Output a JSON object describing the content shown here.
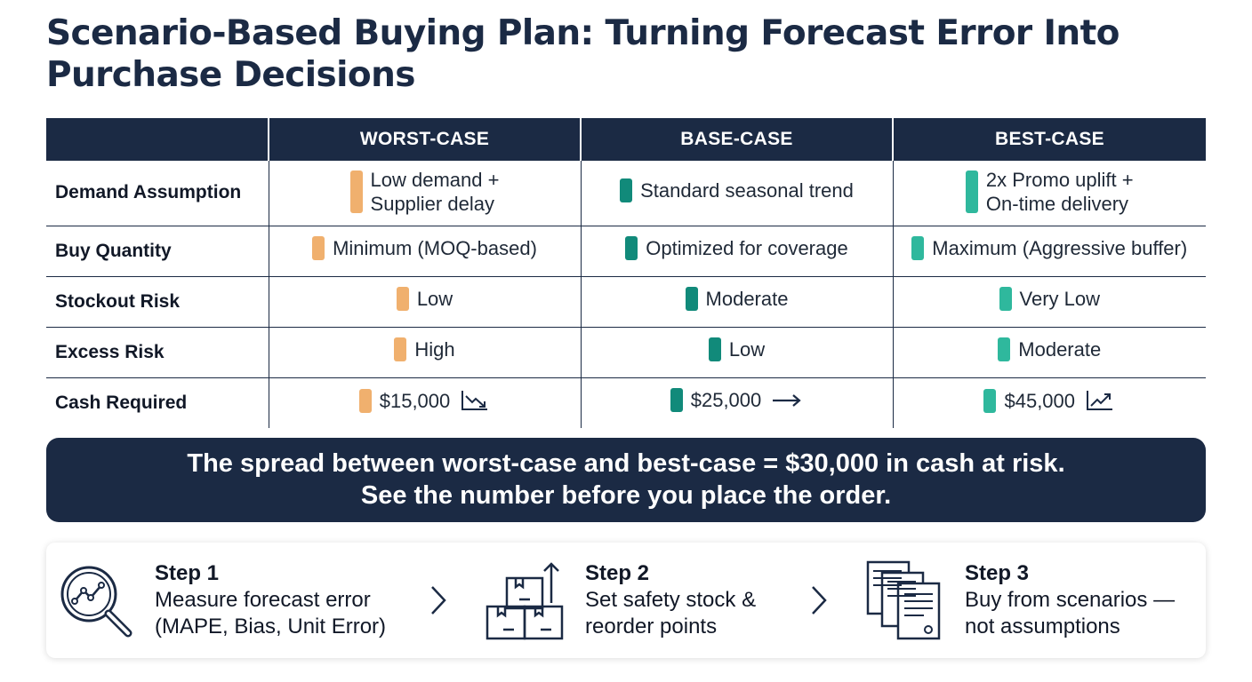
{
  "title": "Scenario-Based Buying Plan: Turning Forecast Error Into Purchase Decisions",
  "colors": {
    "navy": "#1b2a44",
    "worst": "#f0b06e",
    "base": "#118a7a",
    "best": "#2fb89d"
  },
  "table": {
    "headers": [
      "",
      "WORST-CASE",
      "BASE-CASE",
      "BEST-CASE"
    ],
    "rows": [
      {
        "label": "Demand Assumption",
        "cells": [
          {
            "line1": "Low demand +",
            "line2": "Supplier delay"
          },
          {
            "line1": "Standard seasonal trend"
          },
          {
            "line1": "2x Promo uplift +",
            "line2": "On-time delivery"
          }
        ]
      },
      {
        "label": "Buy Quantity",
        "cells": [
          {
            "line1": "Minimum (MOQ-based)"
          },
          {
            "line1": "Optimized for coverage"
          },
          {
            "line1": "Maximum (Aggressive buffer)"
          }
        ]
      },
      {
        "label": "Stockout Risk",
        "cells": [
          {
            "line1": "Low"
          },
          {
            "line1": "Moderate"
          },
          {
            "line1": "Very Low"
          }
        ]
      },
      {
        "label": "Excess Risk",
        "cells": [
          {
            "line1": "High"
          },
          {
            "line1": "Low"
          },
          {
            "line1": "Moderate"
          }
        ]
      },
      {
        "label": "Cash Required",
        "cells": [
          {
            "line1": "$15,000",
            "trend": "trend-down-icon"
          },
          {
            "line1": "$25,000",
            "trend": "arrow-right-icon"
          },
          {
            "line1": "$45,000",
            "trend": "trend-up-icon"
          }
        ]
      }
    ]
  },
  "banner": {
    "line1": "The spread between worst-case and best-case = $30,000 in cash at risk.",
    "line2": "See the number before you place the order."
  },
  "steps": [
    {
      "title": "Step 1",
      "line1": "Measure forecast error",
      "line2": "(MAPE, Bias, Unit Error)",
      "icon": "magnifier-chart-icon"
    },
    {
      "title": "Step 2",
      "line1": "Set safety stock &",
      "line2": "reorder points",
      "icon": "stacked-boxes-icon"
    },
    {
      "title": "Step 3",
      "line1": "Buy from scenarios —",
      "line2": "not assumptions",
      "icon": "documents-icon"
    }
  ]
}
